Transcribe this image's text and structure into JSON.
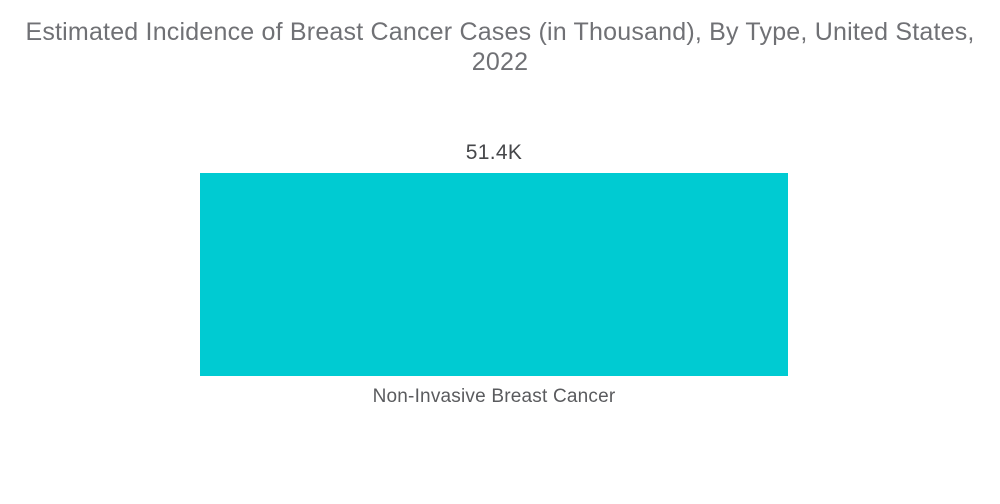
{
  "chart_data": {
    "type": "bar",
    "title": "Estimated Incidence of Breast Cancer Cases (in Thousand), By Type, United States, 2022",
    "categories": [
      "Non-Invasive Breast Cancer"
    ],
    "values": [
      51.4
    ],
    "value_labels": [
      "51.4K"
    ],
    "xlabel": "",
    "ylabel": "",
    "ylim": [
      0,
      51.4
    ],
    "grid": false,
    "legend": false,
    "orientation": "vertical",
    "bar_color": "#00CBD2",
    "background_color": "#FFFFFF",
    "title_color": "#707175"
  }
}
